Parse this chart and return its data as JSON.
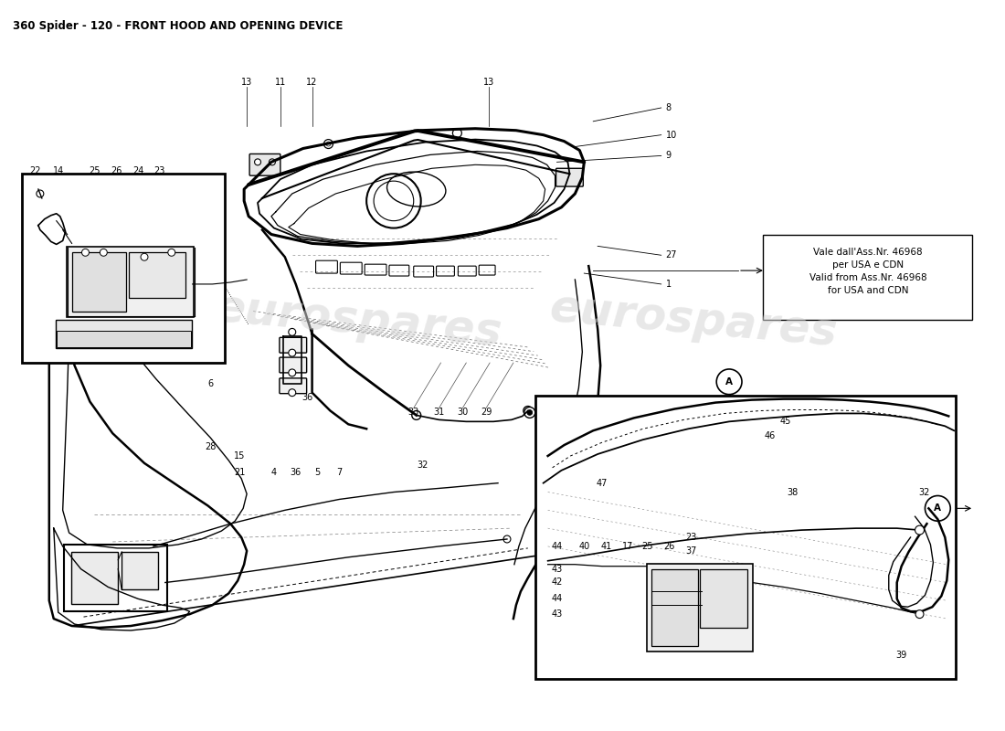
{
  "title": "360 Spider - 120 - FRONT HOOD AND OPENING DEVICE",
  "title_fontsize": 8.5,
  "bg_color": "#ffffff",
  "note_text": "Vale dall'Ass.Nr. 46968\nper USA e CDN\nValid from Ass.Nr. 46968\nfor USA and CDN",
  "watermark_text": "eurospares",
  "label_fs": 7.0
}
